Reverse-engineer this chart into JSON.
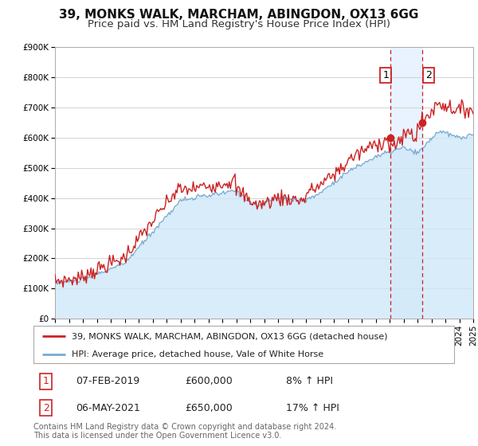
{
  "title": "39, MONKS WALK, MARCHAM, ABINGDON, OX13 6GG",
  "subtitle": "Price paid vs. HM Land Registry's House Price Index (HPI)",
  "legend_label_1": "39, MONKS WALK, MARCHAM, ABINGDON, OX13 6GG (detached house)",
  "legend_label_2": "HPI: Average price, detached house, Vale of White Horse",
  "footnote_1": "Contains HM Land Registry data © Crown copyright and database right 2024.",
  "footnote_2": "This data is licensed under the Open Government Licence v3.0.",
  "color_price": "#cc2222",
  "color_hpi": "#7aaad0",
  "color_hpi_fill": "#d0e8f8",
  "color_vline": "#cc2222",
  "color_vshade": "#ddeeff",
  "ylim": [
    0,
    900000
  ],
  "yticks": [
    0,
    100000,
    200000,
    300000,
    400000,
    500000,
    600000,
    700000,
    800000,
    900000
  ],
  "ytick_labels": [
    "£0",
    "£100K",
    "£200K",
    "£300K",
    "£400K",
    "£500K",
    "£600K",
    "£700K",
    "£800K",
    "£900K"
  ],
  "sale1_date": 2019.08,
  "sale1_price": 600000,
  "sale1_label": "1",
  "sale1_info": "07-FEB-2019",
  "sale1_amount": "£600,000",
  "sale1_pct": "8% ↑ HPI",
  "sale2_date": 2021.35,
  "sale2_price": 650000,
  "sale2_label": "2",
  "sale2_info": "06-MAY-2021",
  "sale2_amount": "£650,000",
  "sale2_pct": "17% ↑ HPI",
  "xmin": 1995,
  "xmax": 2025,
  "background_color": "#ffffff",
  "grid_color": "#cccccc",
  "title_fontsize": 11,
  "subtitle_fontsize": 9.5,
  "axis_fontsize": 7.5,
  "legend_fontsize": 8,
  "footnote_fontsize": 7
}
